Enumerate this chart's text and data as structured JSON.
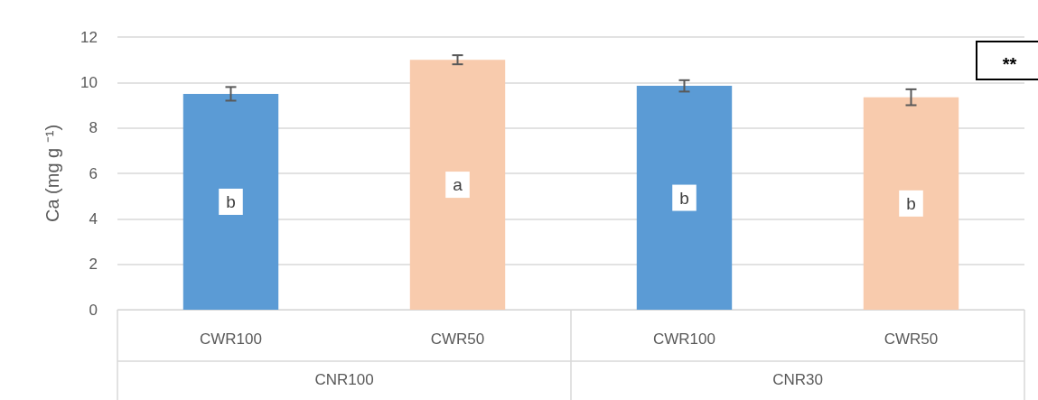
{
  "chart_data": {
    "type": "bar",
    "ylabel": "Ca (mg g ⁻¹)",
    "categories": [
      "CWR100",
      "CWR50",
      "CWR100",
      "CWR50"
    ],
    "values": [
      9.5,
      11.0,
      9.85,
      9.35
    ],
    "colors": [
      "#5b9bd5",
      "#f8cbad",
      "#5b9bd5",
      "#f8cbad"
    ],
    "errors": [
      0.3,
      0.2,
      0.25,
      0.35
    ],
    "ylim": [
      0,
      12
    ],
    "yticks": [
      0,
      2,
      4,
      6,
      8,
      10,
      12
    ],
    "grid": "y",
    "annotations": [
      "b",
      "a",
      "b",
      "b",
      "CNR100",
      "CNR30",
      "**"
    ]
  }
}
